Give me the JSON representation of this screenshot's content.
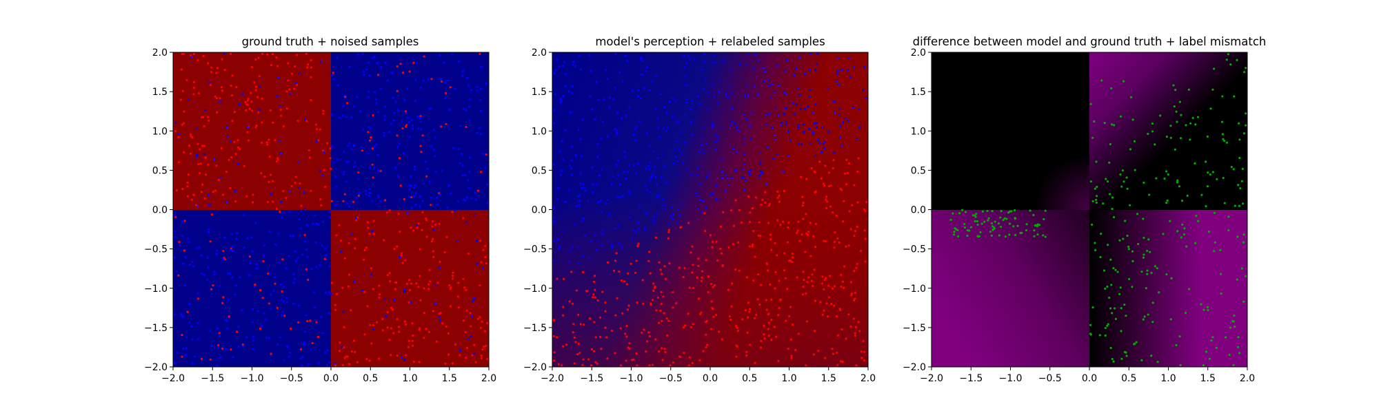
{
  "figure": {
    "colors": {
      "deep_blue": "#00008b",
      "dark_red": "#8b0000",
      "point_red": "#ff0000",
      "point_blue": "#0000ff",
      "point_green": "#00aa00",
      "purple": "#800080",
      "black": "#000000"
    },
    "chart_data": [
      {
        "type": "scatter",
        "title": "ground truth + noised samples",
        "background": "xor quadrants: top-left dark red, top-right deep blue, bottom-left deep blue, bottom-right dark red",
        "xlim": [
          -2.0,
          2.0
        ],
        "ylim": [
          -2.0,
          2.0
        ],
        "xticks": [
          "−2.0",
          "−1.5",
          "−1.0",
          "−0.5",
          "0.0",
          "0.5",
          "1.0",
          "1.5",
          "2.0"
        ],
        "yticks": [
          "−2.0",
          "−1.5",
          "−1.0",
          "−0.5",
          "0.0",
          "0.5",
          "1.0",
          "1.5",
          "2.0"
        ],
        "point_colors": [
          "blue",
          "red"
        ],
        "grid": false,
        "legend": "none"
      },
      {
        "type": "scatter",
        "title": "model's perception + relabeled samples",
        "background": "smooth gradient from deep blue (top-left) to dark red (right / bottom-right)",
        "xlim": [
          -2.0,
          2.0
        ],
        "ylim": [
          -2.0,
          2.0
        ],
        "xticks": [
          "−2.0",
          "−1.5",
          "−1.0",
          "−0.5",
          "0.0",
          "0.5",
          "1.0",
          "1.5",
          "2.0"
        ],
        "yticks": [
          "−2.0",
          "−1.5",
          "−1.0",
          "−0.5",
          "0.0",
          "0.5",
          "1.0",
          "1.5",
          "2.0"
        ],
        "point_colors": [
          "blue",
          "red"
        ],
        "grid": false,
        "legend": "none"
      },
      {
        "type": "scatter",
        "title": "difference between model and ground truth + label mismatch",
        "background": "black where model agrees with ground truth, purple where they differ",
        "xlim": [
          -2.0,
          2.0
        ],
        "ylim": [
          -2.0,
          2.0
        ],
        "xticks": [
          "−2.0",
          "−1.5",
          "−1.0",
          "−0.5",
          "0.0",
          "0.5",
          "1.0",
          "1.5",
          "2.0"
        ],
        "yticks": [
          "−2.0",
          "−1.5",
          "−1.0",
          "−0.5",
          "0.0",
          "0.5",
          "1.0",
          "1.5",
          "2.0"
        ],
        "point_colors": [
          "green"
        ],
        "grid": false,
        "legend": "none"
      }
    ]
  }
}
